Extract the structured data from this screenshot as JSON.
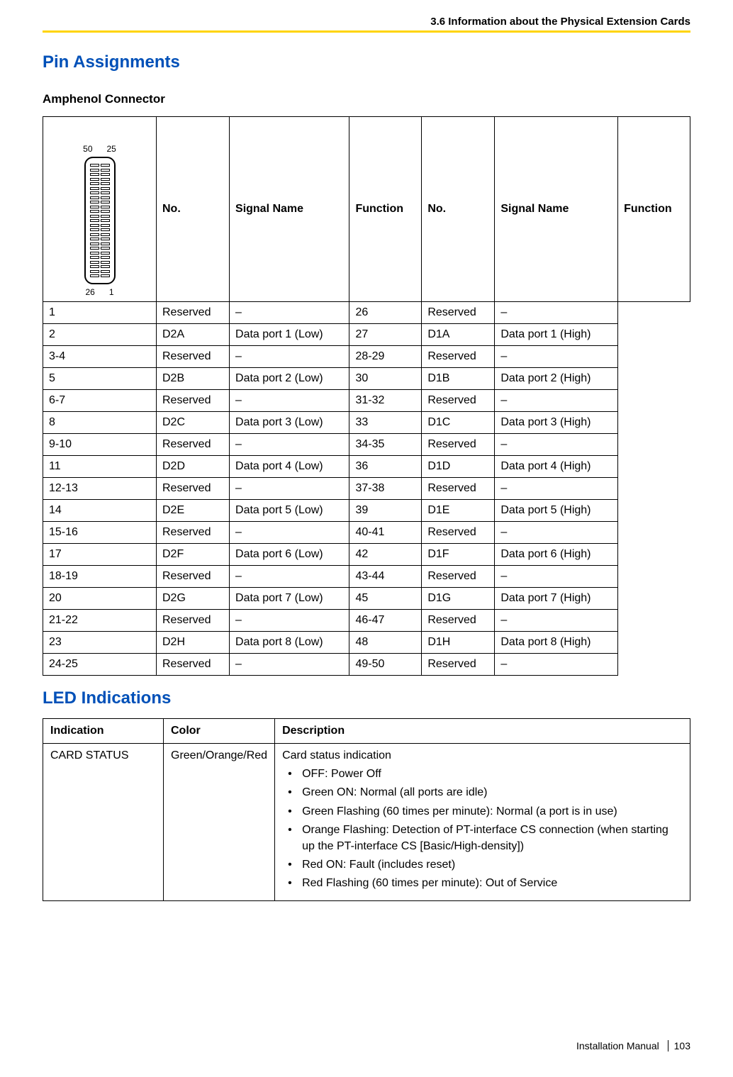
{
  "header": {
    "section": "3.6 Information about the Physical Extension Cards"
  },
  "titles": {
    "pin_assignments": "Pin Assignments",
    "amphenol": "Amphenol Connector",
    "led": "LED Indications"
  },
  "connector": {
    "tl": "50",
    "tr": "25",
    "bl": "26",
    "br": "1"
  },
  "pin_table": {
    "headers": {
      "no": "No.",
      "sig": "Signal Name",
      "func": "Function"
    },
    "rows": [
      {
        "n1": "1",
        "s1": "Reserved",
        "f1": "–",
        "n2": "26",
        "s2": "Reserved",
        "f2": "–"
      },
      {
        "n1": "2",
        "s1": "D2A",
        "f1": "Data port 1 (Low)",
        "n2": "27",
        "s2": "D1A",
        "f2": "Data port 1 (High)"
      },
      {
        "n1": "3-4",
        "s1": "Reserved",
        "f1": "–",
        "n2": "28-29",
        "s2": "Reserved",
        "f2": "–"
      },
      {
        "n1": "5",
        "s1": "D2B",
        "f1": "Data port 2 (Low)",
        "n2": "30",
        "s2": "D1B",
        "f2": "Data port 2 (High)"
      },
      {
        "n1": "6-7",
        "s1": "Reserved",
        "f1": "–",
        "n2": "31-32",
        "s2": "Reserved",
        "f2": "–"
      },
      {
        "n1": "8",
        "s1": "D2C",
        "f1": "Data port 3 (Low)",
        "n2": "33",
        "s2": "D1C",
        "f2": "Data port 3 (High)"
      },
      {
        "n1": "9-10",
        "s1": "Reserved",
        "f1": "–",
        "n2": "34-35",
        "s2": "Reserved",
        "f2": "–"
      },
      {
        "n1": "11",
        "s1": "D2D",
        "f1": "Data port 4 (Low)",
        "n2": "36",
        "s2": "D1D",
        "f2": "Data port 4 (High)"
      },
      {
        "n1": "12-13",
        "s1": "Reserved",
        "f1": "–",
        "n2": "37-38",
        "s2": "Reserved",
        "f2": "–"
      },
      {
        "n1": "14",
        "s1": "D2E",
        "f1": "Data port 5 (Low)",
        "n2": "39",
        "s2": "D1E",
        "f2": "Data port 5 (High)"
      },
      {
        "n1": "15-16",
        "s1": "Reserved",
        "f1": "–",
        "n2": "40-41",
        "s2": "Reserved",
        "f2": "–"
      },
      {
        "n1": "17",
        "s1": "D2F",
        "f1": "Data port 6 (Low)",
        "n2": "42",
        "s2": "D1F",
        "f2": "Data port 6 (High)"
      },
      {
        "n1": "18-19",
        "s1": "Reserved",
        "f1": "–",
        "n2": "43-44",
        "s2": "Reserved",
        "f2": "–"
      },
      {
        "n1": "20",
        "s1": "D2G",
        "f1": "Data port 7 (Low)",
        "n2": "45",
        "s2": "D1G",
        "f2": "Data port 7 (High)"
      },
      {
        "n1": "21-22",
        "s1": "Reserved",
        "f1": "–",
        "n2": "46-47",
        "s2": "Reserved",
        "f2": "–"
      },
      {
        "n1": "23",
        "s1": "D2H",
        "f1": "Data port 8 (Low)",
        "n2": "48",
        "s2": "D1H",
        "f2": "Data port 8 (High)"
      },
      {
        "n1": "24-25",
        "s1": "Reserved",
        "f1": "–",
        "n2": "49-50",
        "s2": "Reserved",
        "f2": "–"
      }
    ]
  },
  "led_table": {
    "headers": {
      "ind": "Indication",
      "color": "Color",
      "desc": "Description"
    },
    "row": {
      "indication": "CARD STATUS",
      "color": "Green/Orange/Red",
      "desc_title": "Card status indication",
      "items": [
        "OFF: Power Off",
        "Green ON: Normal (all ports are idle)",
        "Green Flashing (60 times per minute): Normal (a port is in use)",
        "Orange Flashing: Detection of PT-interface CS connection (when starting up the PT-interface CS [Basic/High-density])",
        "Red ON: Fault (includes reset)",
        "Red Flashing (60 times per minute): Out of Service"
      ]
    }
  },
  "footer": {
    "manual": "Installation Manual",
    "page": "103"
  }
}
